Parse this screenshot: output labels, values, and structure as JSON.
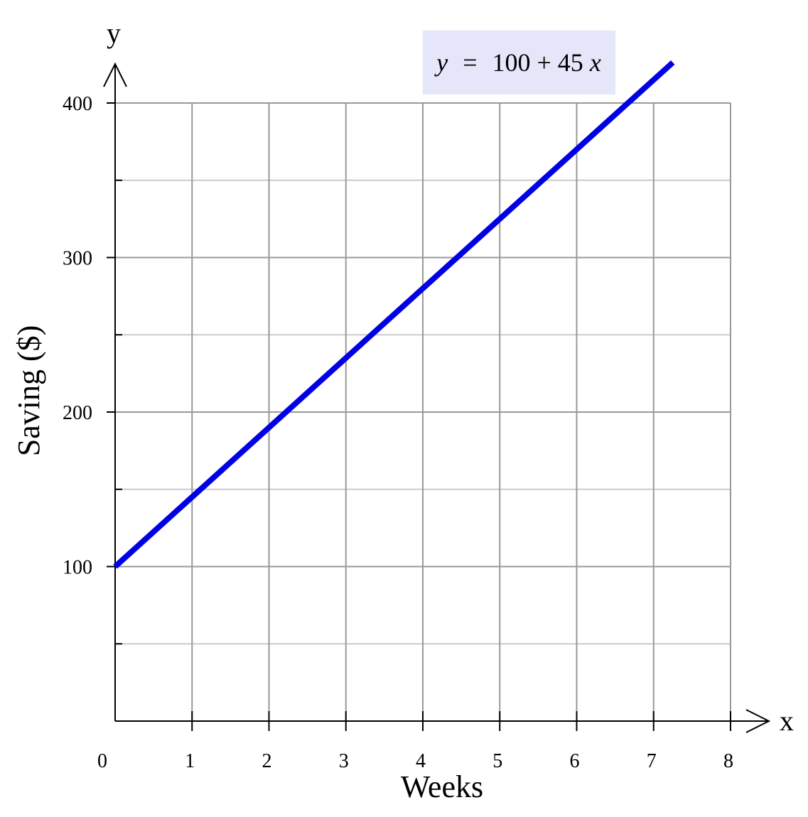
{
  "chart_data": {
    "type": "line",
    "equation": {
      "lhs": "y",
      "equals": "=",
      "constant": "100 + 45",
      "var": "x"
    },
    "xlabel": "Weeks",
    "ylabel": "Saving ($)",
    "x_axis_name": "x",
    "y_axis_name": "y",
    "xlim": [
      0,
      8
    ],
    "ylim": [
      0,
      400
    ],
    "x_ticks": [
      0,
      1,
      2,
      3,
      4,
      5,
      6,
      7,
      8
    ],
    "x_tick_labels": [
      "0",
      "1",
      "2",
      "3",
      "4",
      "5",
      "6",
      "7",
      "8"
    ],
    "y_ticks": [
      100,
      200,
      300,
      400
    ],
    "y_tick_labels": [
      "100",
      "200",
      "300",
      "400"
    ],
    "y_minor_ticks": [
      50,
      150,
      250,
      350
    ],
    "grid": true,
    "series": [
      {
        "color": "#0000e6",
        "x": [
          0,
          7.25
        ],
        "y": [
          100,
          426.25
        ]
      }
    ],
    "colors": {
      "major_grid": "#999999",
      "minor_grid": "#cccccc",
      "equation_box": "#e6e6fa",
      "axis": "#000000"
    }
  }
}
